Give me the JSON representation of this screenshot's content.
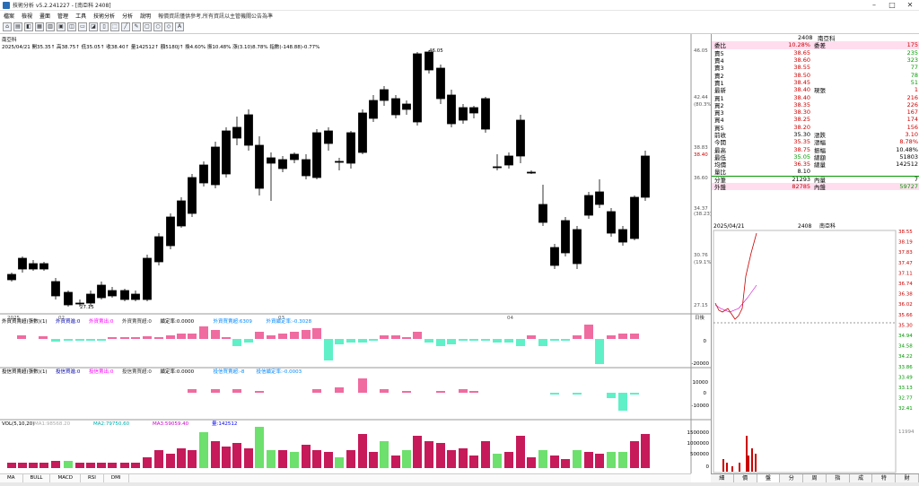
{
  "window": {
    "title": "技術分析 v5.2.241227 - [南亞科 2408]"
  },
  "menu": [
    "檔案",
    "檢視",
    "畫面",
    "管理",
    "工具",
    "技術分析",
    "分析",
    "說明",
    "報價資訊僅供參考,所有資訊以主管機關公告為準"
  ],
  "chart": {
    "stock": "南亞科",
    "info": "2025/04/21 開35.35↑ 高38.75↑ 低35.05↑ 收38.40↑ 量142512↑ 額5180J↑ 換4.60% 振10.48% 漲(3.10)8.78% 指數(-148.88)-0.77%",
    "price_labels": [
      "46.05",
      "42.44",
      "(80.3%)",
      "38.83",
      "38.40",
      "36.60",
      "34.37",
      "(38.23)",
      "30.76",
      "(19.1%)",
      "27.15"
    ],
    "hi_label": "46.05",
    "lo_label": "27.15",
    "month_labels": [
      "2025",
      "02",
      "03",
      "04"
    ],
    "date_box": "日後",
    "panel2": {
      "title": "外資買賣超(張數)(1)",
      "legend": [
        "外資買進:0",
        "外資賣出:0",
        "外資賣買超:0",
        "續定率:0.0000",
        "外資買賣超:6309",
        "外資續定率:-0.3028"
      ],
      "ticks": [
        "0",
        "-20000"
      ]
    },
    "panel3": {
      "title": "投信買賣超(張數)(1)",
      "legend": [
        "投信買進:0",
        "投信賣出:0",
        "投信賣買超:0",
        "續定率:0.0000",
        "投信買賣超:-8",
        "投信續定率:-0.0003"
      ],
      "ticks": [
        "10000",
        "0",
        "-10000"
      ]
    },
    "panel4": {
      "title": "VOL(5,10,20)",
      "legend": [
        "MA1:98568.20",
        "MA2:79750.60",
        "MA3:59059.40",
        "量:142512"
      ],
      "ticks": [
        "1500000",
        "1000000",
        "500000",
        "0"
      ]
    }
  },
  "quote": {
    "header_code": "2408",
    "header_name": "南亞科",
    "rows": [
      {
        "l": "委比",
        "v": "10.28%",
        "l2": "委差",
        "v2": "175",
        "c": "red",
        "c2": "red"
      },
      {
        "l": "賣5",
        "v": "38.65",
        "l2": "",
        "v2": "235",
        "c": "red",
        "c2": "green"
      },
      {
        "l": "賣4",
        "v": "38.60",
        "l2": "",
        "v2": "323",
        "c": "red",
        "c2": "green"
      },
      {
        "l": "賣3",
        "v": "38.55",
        "l2": "",
        "v2": "77",
        "c": "red",
        "c2": "green"
      },
      {
        "l": "賣2",
        "v": "38.50",
        "l2": "",
        "v2": "78",
        "c": "red",
        "c2": "green"
      },
      {
        "l": "賣1",
        "v": "38.45",
        "l2": "",
        "v2": "51",
        "c": "red",
        "c2": "green"
      },
      {
        "l": "最新",
        "v": "38.40",
        "l2": "現張",
        "v2": "1",
        "c": "red",
        "c2": "red"
      },
      {
        "l": "買1",
        "v": "38.40",
        "l2": "",
        "v2": "216",
        "c": "red",
        "c2": "red"
      },
      {
        "l": "買2",
        "v": "38.35",
        "l2": "",
        "v2": "226",
        "c": "red",
        "c2": "red"
      },
      {
        "l": "買3",
        "v": "38.30",
        "l2": "",
        "v2": "167",
        "c": "red",
        "c2": "red"
      },
      {
        "l": "買4",
        "v": "38.25",
        "l2": "",
        "v2": "174",
        "c": "red",
        "c2": "red"
      },
      {
        "l": "買5",
        "v": "38.20",
        "l2": "",
        "v2": "156",
        "c": "red",
        "c2": "red"
      },
      {
        "l": "前收",
        "v": "35.30",
        "l2": "漲跌",
        "v2": "3.10",
        "c": "",
        "c2": "red"
      },
      {
        "l": "今開",
        "v": "35.35",
        "l2": "漲幅",
        "v2": "8.78%",
        "c": "red",
        "c2": "red"
      },
      {
        "l": "最高",
        "v": "38.75",
        "l2": "振幅",
        "v2": "10.48%",
        "c": "red",
        "c2": ""
      },
      {
        "l": "最低",
        "v": "35.05",
        "l2": "總額",
        "v2": "51803",
        "c": "green",
        "c2": ""
      },
      {
        "l": "均價",
        "v": "36.35",
        "l2": "總量",
        "v2": "142512",
        "c": "red",
        "c2": ""
      },
      {
        "l": "量比",
        "v": "8.10",
        "l2": "",
        "v2": "",
        "c": "",
        "c2": ""
      },
      {
        "l": "分筆",
        "v": "21293",
        "l2": "內量",
        "v2": "7",
        "c": "",
        "c2": ""
      },
      {
        "l": "外盤",
        "v": "82785",
        "l2": "內盤",
        "v2": "59727",
        "c": "red",
        "c2": "green"
      }
    ],
    "intraday_date": "2025/04/21",
    "intraday_code": "2408",
    "intraday_name": "南亞科",
    "intraday_ticks": [
      "38.55",
      "38.19",
      "37.83",
      "37.47",
      "37.11",
      "36.74",
      "36.38",
      "36.02",
      "35.66",
      "35.30",
      "34.94",
      "34.58",
      "34.22",
      "33.86",
      "33.49",
      "33.13",
      "32.77",
      "32.41"
    ],
    "vol_label": "11994"
  },
  "bottom_tabs": [
    "MA",
    "BULL",
    "MACD",
    "RSI",
    "DMI"
  ],
  "right_tabs": [
    "細",
    "價",
    "盤",
    "分",
    "周",
    "指",
    "成",
    "特",
    "財"
  ]
}
